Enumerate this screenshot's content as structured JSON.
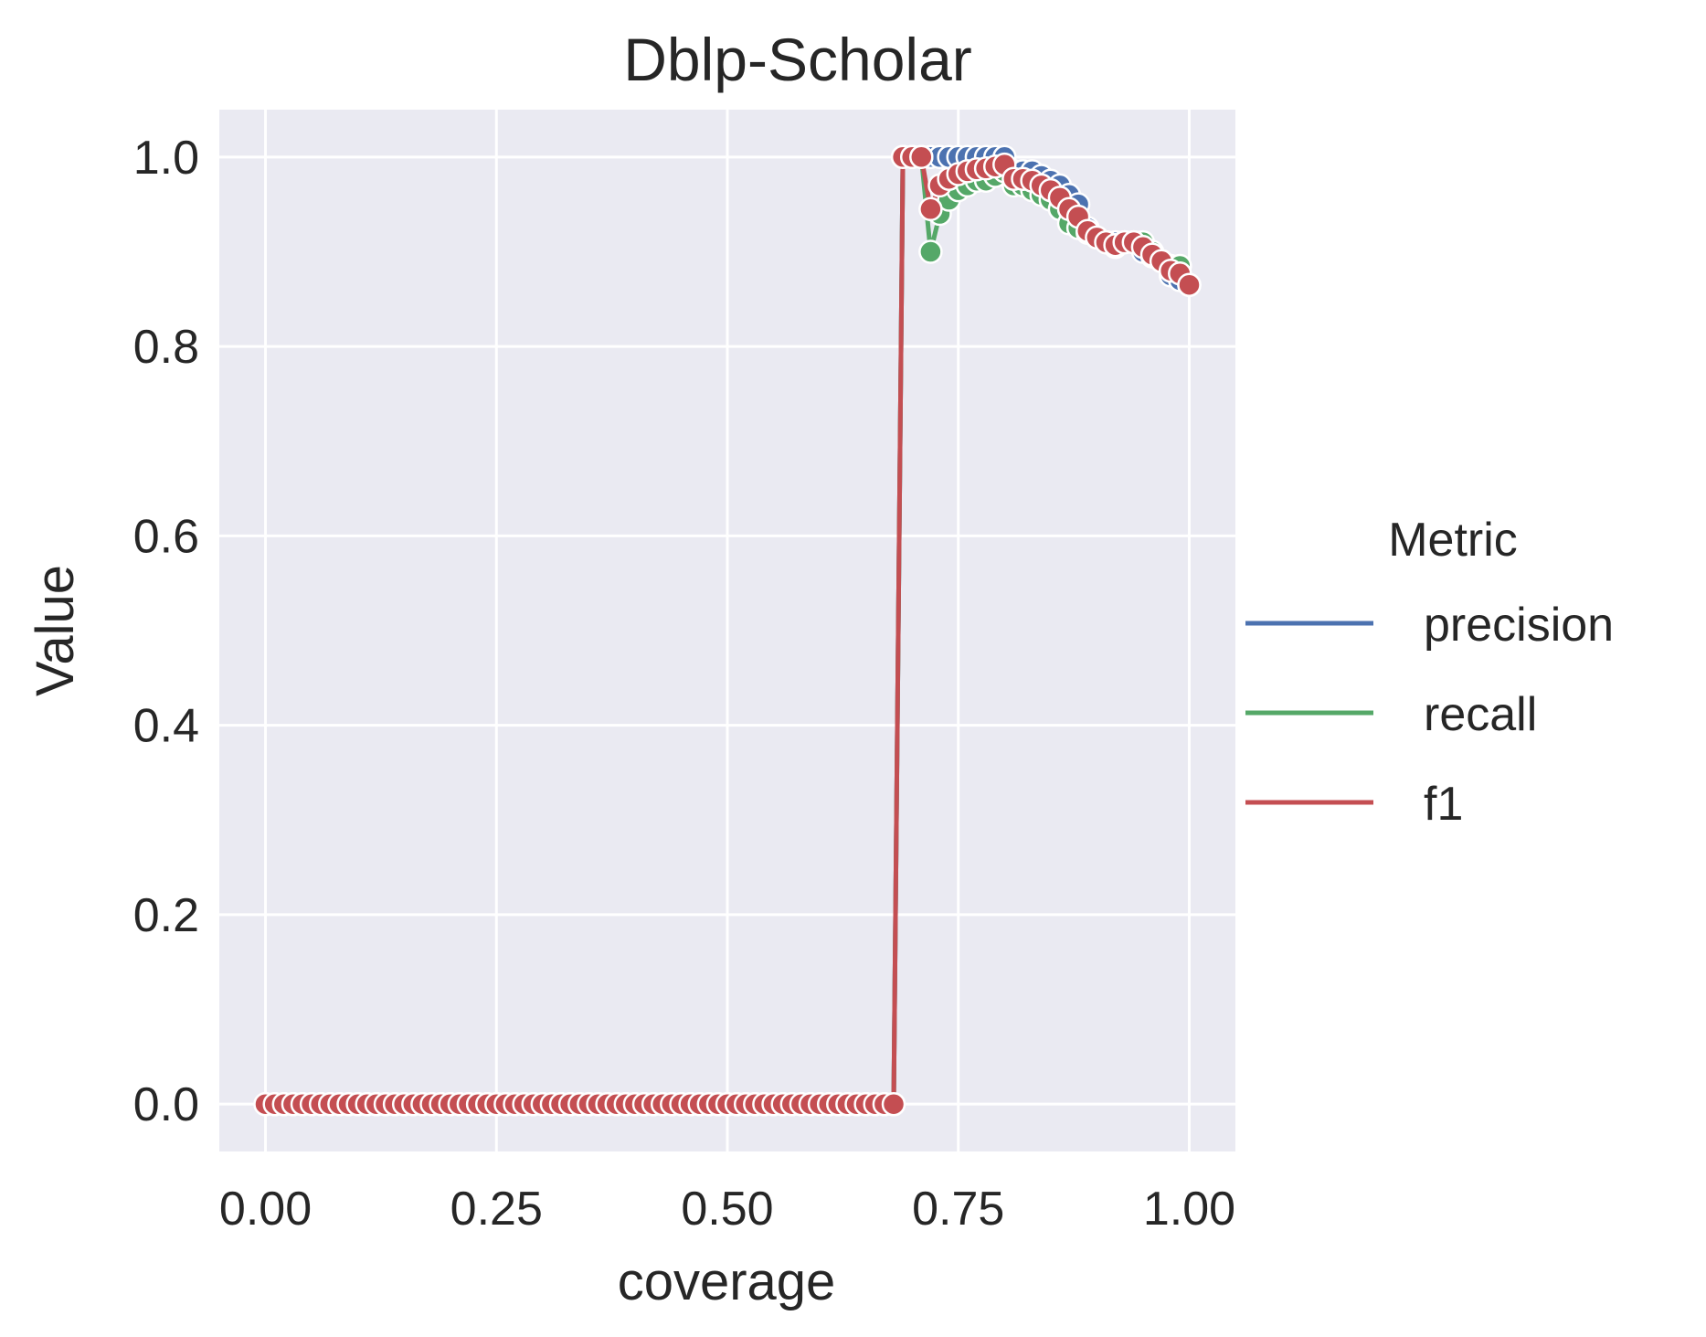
{
  "chart_data": {
    "type": "line",
    "title": "Dblp-Scholar",
    "xlabel": "coverage",
    "ylabel": "Value",
    "xlim": [
      -0.05,
      1.05
    ],
    "ylim": [
      -0.05,
      1.05
    ],
    "xticks": [
      0.0,
      0.25,
      0.5,
      0.75,
      1.0
    ],
    "xtick_labels": [
      "0.00",
      "0.25",
      "0.50",
      "0.75",
      "1.00"
    ],
    "yticks": [
      0.0,
      0.2,
      0.4,
      0.6,
      0.8,
      1.0
    ],
    "ytick_labels": [
      "0.0",
      "0.2",
      "0.4",
      "0.6",
      "0.8",
      "1.0"
    ],
    "grid": true,
    "legend": {
      "title": "Metric",
      "placement": "center-right-outside"
    },
    "background": "#EAEAF2",
    "x": [
      0.0,
      0.01,
      0.02,
      0.03,
      0.04,
      0.05,
      0.06,
      0.07,
      0.08,
      0.09,
      0.1,
      0.11,
      0.12,
      0.13,
      0.14,
      0.15,
      0.16,
      0.17,
      0.18,
      0.19,
      0.2,
      0.21,
      0.22,
      0.23,
      0.24,
      0.25,
      0.26,
      0.27,
      0.28,
      0.29,
      0.3,
      0.31,
      0.32,
      0.33,
      0.34,
      0.35,
      0.36,
      0.37,
      0.38,
      0.39,
      0.4,
      0.41,
      0.42,
      0.43,
      0.44,
      0.45,
      0.46,
      0.47,
      0.48,
      0.49,
      0.5,
      0.51,
      0.52,
      0.53,
      0.54,
      0.55,
      0.56,
      0.57,
      0.58,
      0.59,
      0.6,
      0.61,
      0.62,
      0.63,
      0.64,
      0.65,
      0.66,
      0.67,
      0.68,
      0.69,
      0.7,
      0.71,
      0.72,
      0.73,
      0.74,
      0.75,
      0.76,
      0.77,
      0.78,
      0.79,
      0.8,
      0.81,
      0.82,
      0.83,
      0.84,
      0.85,
      0.86,
      0.87,
      0.88,
      0.89,
      0.9,
      0.91,
      0.92,
      0.93,
      0.94,
      0.95,
      0.96,
      0.97,
      0.98,
      0.99,
      1.0
    ],
    "series": [
      {
        "name": "precision",
        "color": "#4C72B0",
        "values": [
          0,
          0,
          0,
          0,
          0,
          0,
          0,
          0,
          0,
          0,
          0,
          0,
          0,
          0,
          0,
          0,
          0,
          0,
          0,
          0,
          0,
          0,
          0,
          0,
          0,
          0,
          0,
          0,
          0,
          0,
          0,
          0,
          0,
          0,
          0,
          0,
          0,
          0,
          0,
          0,
          0,
          0,
          0,
          0,
          0,
          0,
          0,
          0,
          0,
          0,
          0,
          0,
          0,
          0,
          0,
          0,
          0,
          0,
          0,
          0,
          0,
          0,
          0,
          0,
          0,
          0,
          0,
          0,
          0,
          1.0,
          1.0,
          1.0,
          1.0,
          1.0,
          1.0,
          1.0,
          1.0,
          1.0,
          1.0,
          1.0,
          1.0,
          0.985,
          0.985,
          0.985,
          0.98,
          0.975,
          0.97,
          0.96,
          0.95,
          0.925,
          0.915,
          0.91,
          0.91,
          0.91,
          0.91,
          0.9,
          0.895,
          0.89,
          0.875,
          0.87,
          0.865
        ]
      },
      {
        "name": "recall",
        "color": "#55A868",
        "values": [
          0,
          0,
          0,
          0,
          0,
          0,
          0,
          0,
          0,
          0,
          0,
          0,
          0,
          0,
          0,
          0,
          0,
          0,
          0,
          0,
          0,
          0,
          0,
          0,
          0,
          0,
          0,
          0,
          0,
          0,
          0,
          0,
          0,
          0,
          0,
          0,
          0,
          0,
          0,
          0,
          0,
          0,
          0,
          0,
          0,
          0,
          0,
          0,
          0,
          0,
          0,
          0,
          0,
          0,
          0,
          0,
          0,
          0,
          0,
          0,
          0,
          0,
          0,
          0,
          0,
          0,
          0,
          0,
          0,
          1.0,
          1.0,
          1.0,
          0.9,
          0.94,
          0.955,
          0.965,
          0.97,
          0.975,
          0.975,
          0.98,
          0.985,
          0.97,
          0.97,
          0.965,
          0.96,
          0.955,
          0.945,
          0.93,
          0.925,
          0.92,
          0.915,
          0.91,
          0.905,
          0.91,
          0.91,
          0.91,
          0.9,
          0.89,
          0.885,
          0.885,
          0.865
        ]
      },
      {
        "name": "f1",
        "color": "#C44E52",
        "values": [
          0,
          0,
          0,
          0,
          0,
          0,
          0,
          0,
          0,
          0,
          0,
          0,
          0,
          0,
          0,
          0,
          0,
          0,
          0,
          0,
          0,
          0,
          0,
          0,
          0,
          0,
          0,
          0,
          0,
          0,
          0,
          0,
          0,
          0,
          0,
          0,
          0,
          0,
          0,
          0,
          0,
          0,
          0,
          0,
          0,
          0,
          0,
          0,
          0,
          0,
          0,
          0,
          0,
          0,
          0,
          0,
          0,
          0,
          0,
          0,
          0,
          0,
          0,
          0,
          0,
          0,
          0,
          0,
          0,
          1.0,
          1.0,
          1.0,
          0.945,
          0.97,
          0.977,
          0.982,
          0.985,
          0.987,
          0.988,
          0.99,
          0.992,
          0.977,
          0.977,
          0.975,
          0.97,
          0.965,
          0.957,
          0.945,
          0.937,
          0.922,
          0.915,
          0.91,
          0.907,
          0.91,
          0.91,
          0.905,
          0.897,
          0.89,
          0.88,
          0.877,
          0.865
        ]
      }
    ]
  }
}
